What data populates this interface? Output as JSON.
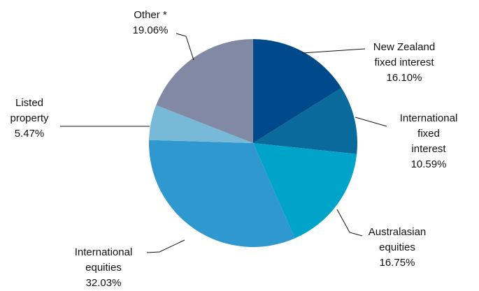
{
  "chart_data": {
    "type": "pie",
    "categories": [
      "New Zealand\nfixed interest",
      "International\nfixed interest",
      "Australasian\nequities",
      "International\nequities",
      "Listed\nproperty",
      "Other *"
    ],
    "values": [
      16.1,
      10.59,
      16.75,
      32.03,
      5.47,
      19.06
    ],
    "value_labels": [
      "16.10%",
      "10.59%",
      "16.75%",
      "32.03%",
      "5.47%",
      "19.06%"
    ],
    "colors": [
      "#004a8c",
      "#0a6a9c",
      "#00a4c8",
      "#2e98cf",
      "#78b9d8",
      "#8189a4"
    ]
  }
}
